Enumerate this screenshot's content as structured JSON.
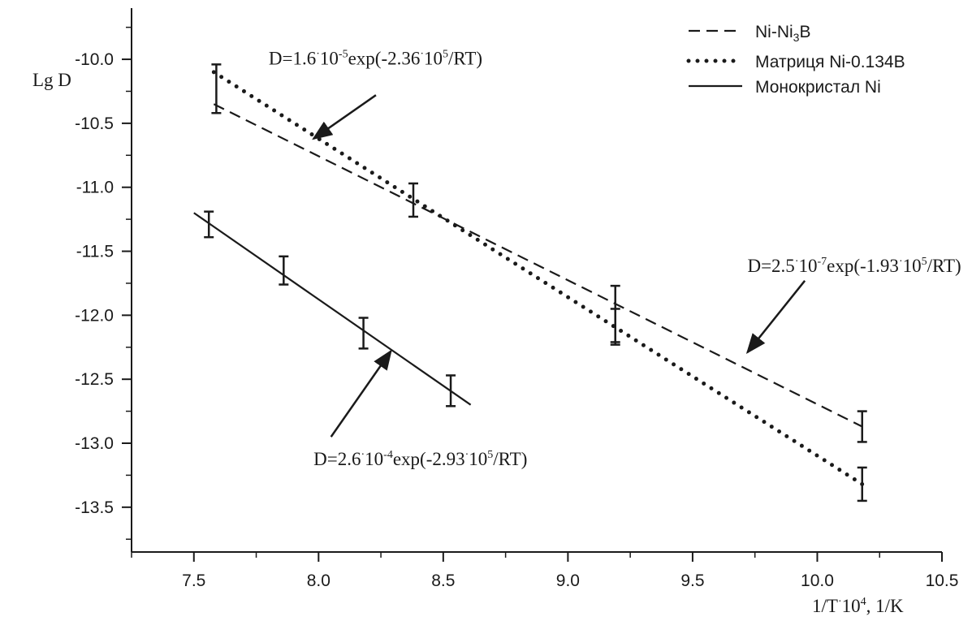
{
  "chart_data": {
    "type": "line",
    "xlabel": {
      "pre": "1/T",
      "dot": "·",
      "ten": "10",
      "exp": "4",
      "post": ", 1/K"
    },
    "ylabel": "Lg D",
    "xlim": [
      7.25,
      10.5
    ],
    "ylim": [
      -13.85,
      -9.6
    ],
    "xticks": [
      7.5,
      8.0,
      8.5,
      9.0,
      9.5,
      10.0,
      10.5
    ],
    "xtick_labels": [
      "7.5",
      "8.0",
      "8.5",
      "9.0",
      "9.5",
      "10.0",
      "10.5"
    ],
    "yticks": [
      -10.0,
      -10.5,
      -11.0,
      -11.5,
      -12.0,
      -12.5,
      -13.0,
      -13.5
    ],
    "ytick_labels": [
      "-10.0",
      "-10.5",
      "-11.0",
      "-11.5",
      "-12.0",
      "-12.5",
      "-13.0",
      "-13.5"
    ],
    "grid": false,
    "legend_position": "top-right",
    "series": [
      {
        "name": "Ni-Ni₃B",
        "legend": {
          "pre": "Ni-Ni",
          "sub": "3",
          "post": "B"
        },
        "style": "dashed",
        "fit_line": {
          "x": [
            7.58,
            10.18
          ],
          "y": [
            -10.35,
            -12.87
          ]
        },
        "points": [
          {
            "x": 7.59,
            "y": -10.23,
            "err": 0.19
          },
          {
            "x": 8.38,
            "y": -11.1,
            "err": 0.13
          },
          {
            "x": 9.19,
            "y": -12.0,
            "err": 0.23
          },
          {
            "x": 10.18,
            "y": -12.87,
            "err": 0.12
          }
        ]
      },
      {
        "name": "Матриця Ni-0.134B",
        "legend": {
          "pre": "Матриця Ni-0.134B",
          "sub": "",
          "post": ""
        },
        "style": "dotted",
        "fit_line": {
          "x": [
            7.58,
            10.18
          ],
          "y": [
            -10.1,
            -13.32
          ]
        },
        "points": [
          {
            "x": 9.19,
            "y": -12.08,
            "err": 0.13
          },
          {
            "x": 10.18,
            "y": -13.32,
            "err": 0.13
          }
        ]
      },
      {
        "name": "Монокристал Ni",
        "legend": {
          "pre": "Монокристал Ni",
          "sub": "",
          "post": ""
        },
        "style": "solid",
        "fit_line": {
          "x": [
            7.5,
            8.61
          ],
          "y": [
            -11.2,
            -12.7
          ]
        },
        "points": [
          {
            "x": 7.56,
            "y": -11.29,
            "err": 0.1
          },
          {
            "x": 7.86,
            "y": -11.65,
            "err": 0.11
          },
          {
            "x": 8.18,
            "y": -12.14,
            "err": 0.12
          },
          {
            "x": 8.53,
            "y": -12.59,
            "err": 0.12
          }
        ]
      }
    ],
    "annotations": [
      {
        "parts": [
          {
            "t": "D=1.6"
          },
          {
            "t": "·",
            "sup": true
          },
          {
            "t": "10"
          },
          {
            "t": "-5",
            "sup": true
          },
          {
            "t": "exp(-2.36"
          },
          {
            "t": "·",
            "sup": true
          },
          {
            "t": "10"
          },
          {
            "t": "5",
            "sup": true
          },
          {
            "t": "/RT)"
          }
        ],
        "text_at": [
          7.8,
          -10.04
        ],
        "arrow_from": [
          8.23,
          -10.28
        ],
        "arrow_to": [
          7.98,
          -10.62
        ]
      },
      {
        "parts": [
          {
            "t": "D=2.5"
          },
          {
            "t": "·",
            "sup": true
          },
          {
            "t": "10"
          },
          {
            "t": "-7",
            "sup": true
          },
          {
            "t": "exp(-1.93"
          },
          {
            "t": "·",
            "sup": true
          },
          {
            "t": "10"
          },
          {
            "t": "5",
            "sup": true
          },
          {
            "t": "/RT)"
          }
        ],
        "text_at": [
          9.72,
          -11.66
        ],
        "arrow_from": [
          9.95,
          -11.73
        ],
        "arrow_to": [
          9.72,
          -12.29
        ]
      },
      {
        "parts": [
          {
            "t": "D=2.6"
          },
          {
            "t": "·",
            "sup": true
          },
          {
            "t": "10"
          },
          {
            "t": "-4",
            "sup": true
          },
          {
            "t": "exp(-2.93"
          },
          {
            "t": "·",
            "sup": true
          },
          {
            "t": "10"
          },
          {
            "t": "5",
            "sup": true
          },
          {
            "t": "/RT)"
          }
        ],
        "text_at": [
          7.98,
          -13.17
        ],
        "arrow_from": [
          8.05,
          -12.95
        ],
        "arrow_to": [
          8.29,
          -12.28
        ]
      }
    ]
  }
}
